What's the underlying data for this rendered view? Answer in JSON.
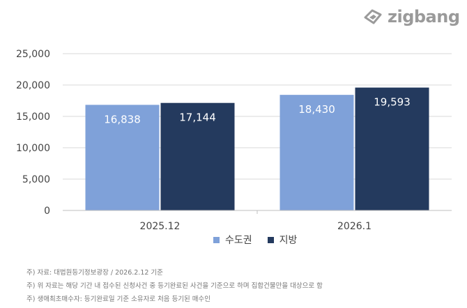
{
  "brand": {
    "name": "zigbang",
    "icon": "zigbang-logo-icon"
  },
  "chart_data": {
    "type": "bar",
    "categories": [
      "2025.12",
      "2026.1"
    ],
    "series": [
      {
        "name": "수도권",
        "values": [
          16838,
          18430
        ],
        "labels": [
          "16,838",
          "18,430"
        ],
        "color": "#7fa1d9"
      },
      {
        "name": "지방",
        "values": [
          17144,
          19593
        ],
        "labels": [
          "17,144",
          "19,593"
        ],
        "color": "#243a5e"
      }
    ],
    "ylim": [
      0,
      25000
    ],
    "yticks": [
      0,
      5000,
      10000,
      15000,
      20000,
      25000
    ],
    "ytick_labels": [
      "0",
      "5,000",
      "10,000",
      "15,000",
      "20,000",
      "25,000"
    ],
    "grid": true,
    "legend_position": "bottom"
  },
  "notes": [
    "주) 자료: 대법원등기정보광장 / 2026.2.12 기준",
    "주) 위 자료는 해당 기간 내 접수된 신청사건 중 등기완료된 사건을 기준으로 하며 집합건물만을 대상으로 함",
    "주) 생애최초매수자: 등기완료일 기준 소유자로 처음 등기된 매수인"
  ]
}
